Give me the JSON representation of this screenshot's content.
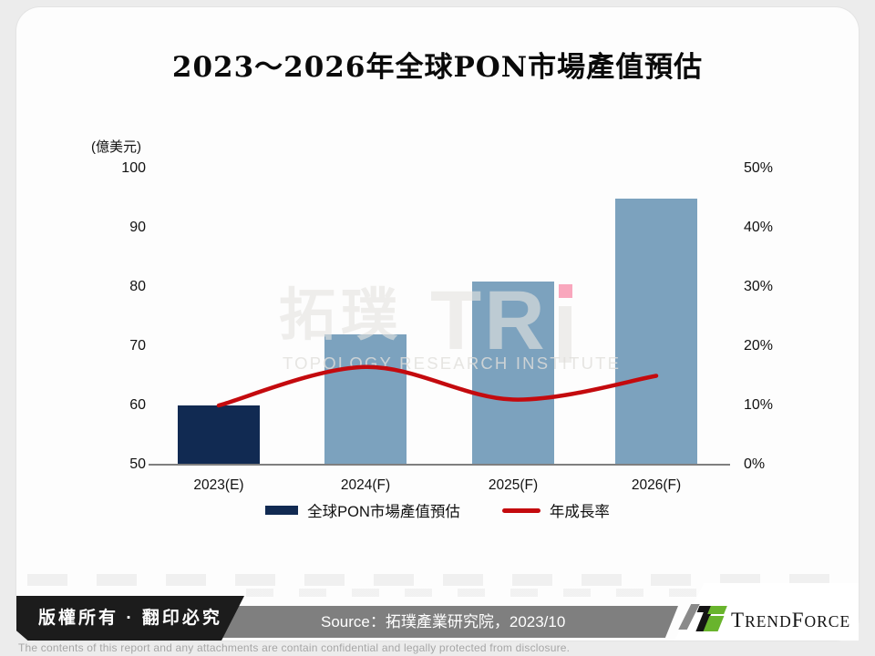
{
  "title": "2023～2026年全球PON市場產值預估",
  "chart_data": {
    "type": "combo-bar-line",
    "categories": [
      "2023(E)",
      "2024(F)",
      "2025(F)",
      "2026(F)"
    ],
    "series": [
      {
        "name": "全球PON市場產值預估",
        "type": "bar",
        "axis": "left",
        "values": [
          60,
          72,
          81,
          95
        ],
        "bar_colors": [
          "#112A52",
          "#7CA2BE",
          "#7CA2BE",
          "#7CA2BE"
        ],
        "legend_color": "#112A52"
      },
      {
        "name": "年成長率",
        "type": "line",
        "axis": "right",
        "values_percent": [
          10,
          16.5,
          11,
          15
        ],
        "color": "#C40A0E"
      }
    ],
    "left_axis": {
      "unit_label": "(億美元)",
      "ticks": [
        "100",
        "90",
        "80",
        "70",
        "60",
        "50"
      ],
      "min": 50,
      "max": 100
    },
    "right_axis": {
      "ticks": [
        "50%",
        "40%",
        "30%",
        "20%",
        "10%",
        "0%"
      ],
      "min": 0,
      "max": 50
    },
    "grid": "off",
    "legend_position": "bottom"
  },
  "watermark": {
    "cjk": "拓璞",
    "latin": "TR",
    "subtitle": "TOPOLOGY RESEARCH INSTITUTE",
    "dot_color": "#F9A7BD"
  },
  "footer": {
    "copyright": "版權所有 · 翻印必究",
    "source": "Source：拓璞產業研究院，2023/10",
    "logo": {
      "t": "T",
      "rend": "REND",
      "f": "F",
      "orce": "ORCE"
    },
    "logo_green": "#69B42D",
    "disclaimer": "The contents of this report and any attachments are contain confidential and legally protected from disclosure."
  }
}
